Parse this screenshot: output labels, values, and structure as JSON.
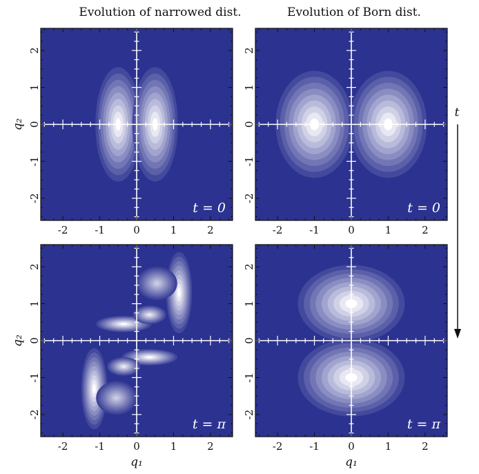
{
  "titles": {
    "left": "Evolution of narrowed dist.",
    "right": "Evolution of Born dist."
  },
  "time_axis_label": "t",
  "chart_data": [
    {
      "type": "heatmap",
      "panel": "narrowed-t0",
      "label": "t = 0",
      "xlabel": "",
      "ylabel": "q₂",
      "xlim": [
        -2.6,
        2.6
      ],
      "ylim": [
        -2.6,
        2.6
      ],
      "xticks": [
        "-2",
        "-1",
        "0",
        "1",
        "2"
      ],
      "yticks": [
        "-2",
        "-1",
        "0",
        "1",
        "2"
      ],
      "lobes": [
        {
          "x": -0.5,
          "y": 0.0,
          "sx": 0.62,
          "sy": 1.55,
          "peak": 1.0
        },
        {
          "x": 0.5,
          "y": 0.0,
          "sx": 0.62,
          "sy": 1.55,
          "peak": 1.0
        }
      ]
    },
    {
      "type": "heatmap",
      "panel": "born-t0",
      "label": "t = 0",
      "xlabel": "",
      "ylabel": "",
      "xlim": [
        -2.6,
        2.6
      ],
      "ylim": [
        -2.6,
        2.6
      ],
      "xticks": [
        "-2",
        "-1",
        "0",
        "1",
        "2"
      ],
      "yticks": [
        "-2",
        "-1",
        "0",
        "1",
        "2"
      ],
      "lobes": [
        {
          "x": -1.0,
          "y": 0.0,
          "sx": 1.05,
          "sy": 1.45,
          "peak": 1.0
        },
        {
          "x": 1.0,
          "y": 0.0,
          "sx": 1.05,
          "sy": 1.45,
          "peak": 1.0
        }
      ]
    },
    {
      "type": "heatmap",
      "panel": "narrowed-tpi",
      "label": "t = π",
      "xlabel": "q₁",
      "ylabel": "q₂",
      "xlim": [
        -2.6,
        2.6
      ],
      "ylim": [
        -2.6,
        2.6
      ],
      "xticks": [
        "-2",
        "-1",
        "0",
        "1",
        "2"
      ],
      "yticks": [
        "-2",
        "-1",
        "0",
        "1",
        "2"
      ],
      "lobes": [
        {
          "x": 1.15,
          "y": 1.3,
          "sx": 0.35,
          "sy": 1.1,
          "peak": 1.0
        },
        {
          "x": 0.55,
          "y": 1.55,
          "sx": 0.55,
          "sy": 0.45,
          "peak": 0.75
        },
        {
          "x": -0.35,
          "y": 0.45,
          "sx": 0.75,
          "sy": 0.22,
          "peak": 1.0
        },
        {
          "x": 0.35,
          "y": 0.7,
          "sx": 0.45,
          "sy": 0.25,
          "peak": 0.9
        },
        {
          "x": -1.15,
          "y": -1.3,
          "sx": 0.35,
          "sy": 1.1,
          "peak": 1.0
        },
        {
          "x": -0.55,
          "y": -1.55,
          "sx": 0.55,
          "sy": 0.45,
          "peak": 0.75
        },
        {
          "x": 0.35,
          "y": -0.45,
          "sx": 0.75,
          "sy": 0.22,
          "peak": 1.0
        },
        {
          "x": -0.35,
          "y": -0.7,
          "sx": 0.45,
          "sy": 0.25,
          "peak": 0.9
        }
      ]
    },
    {
      "type": "heatmap",
      "panel": "born-tpi",
      "label": "t = π",
      "xlabel": "q₁",
      "ylabel": "",
      "xlim": [
        -2.6,
        2.6
      ],
      "ylim": [
        -2.6,
        2.6
      ],
      "xticks": [
        "-2",
        "-1",
        "0",
        "1",
        "2"
      ],
      "yticks": [
        "-2",
        "-1",
        "0",
        "1",
        "2"
      ],
      "lobes": [
        {
          "x": 0.0,
          "y": 1.0,
          "sx": 1.45,
          "sy": 1.05,
          "peak": 1.0
        },
        {
          "x": 0.0,
          "y": -1.0,
          "sx": 1.45,
          "sy": 1.05,
          "peak": 1.0
        }
      ]
    }
  ],
  "colors": {
    "background": "#2c3290",
    "peak": "#ffffff",
    "axis_lines": "#ffffff",
    "frame": "#111111"
  }
}
